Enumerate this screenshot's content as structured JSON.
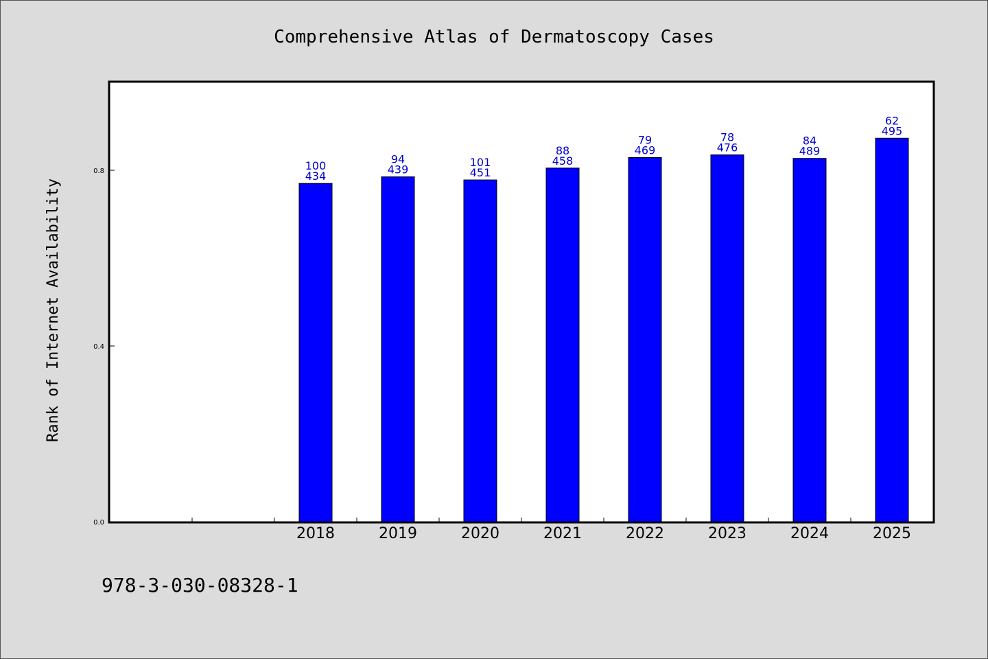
{
  "chart_data": {
    "type": "bar",
    "title": "Comprehensive Atlas of Dermatoscopy Cases",
    "ylabel": "Rank of Internet Availability",
    "xlabel": "",
    "categories": [
      "",
      "",
      "2018",
      "2019",
      "2020",
      "2021",
      "2022",
      "2023",
      "2024",
      "2025"
    ],
    "values": [
      null,
      null,
      0.77,
      0.785,
      0.778,
      0.805,
      0.829,
      0.835,
      0.827,
      0.873
    ],
    "labels_top": [
      "",
      "",
      "100",
      "94",
      "101",
      "88",
      "79",
      "78",
      "84",
      "62"
    ],
    "labels_bottom": [
      "",
      "",
      "434",
      "439",
      "451",
      "458",
      "469",
      "476",
      "489",
      "495"
    ],
    "yticks": [
      "0.0",
      "0.4",
      "0.8"
    ],
    "ytick_values": [
      0.0,
      0.4,
      0.8
    ],
    "ylim": [
      0,
      1.0
    ],
    "grid": false,
    "colors": {
      "bar": "#0000ff",
      "label": "#0000cc",
      "background": "#dcdcdc",
      "plot": "#ffffff"
    }
  },
  "footnote": "978-3-030-08328-1"
}
